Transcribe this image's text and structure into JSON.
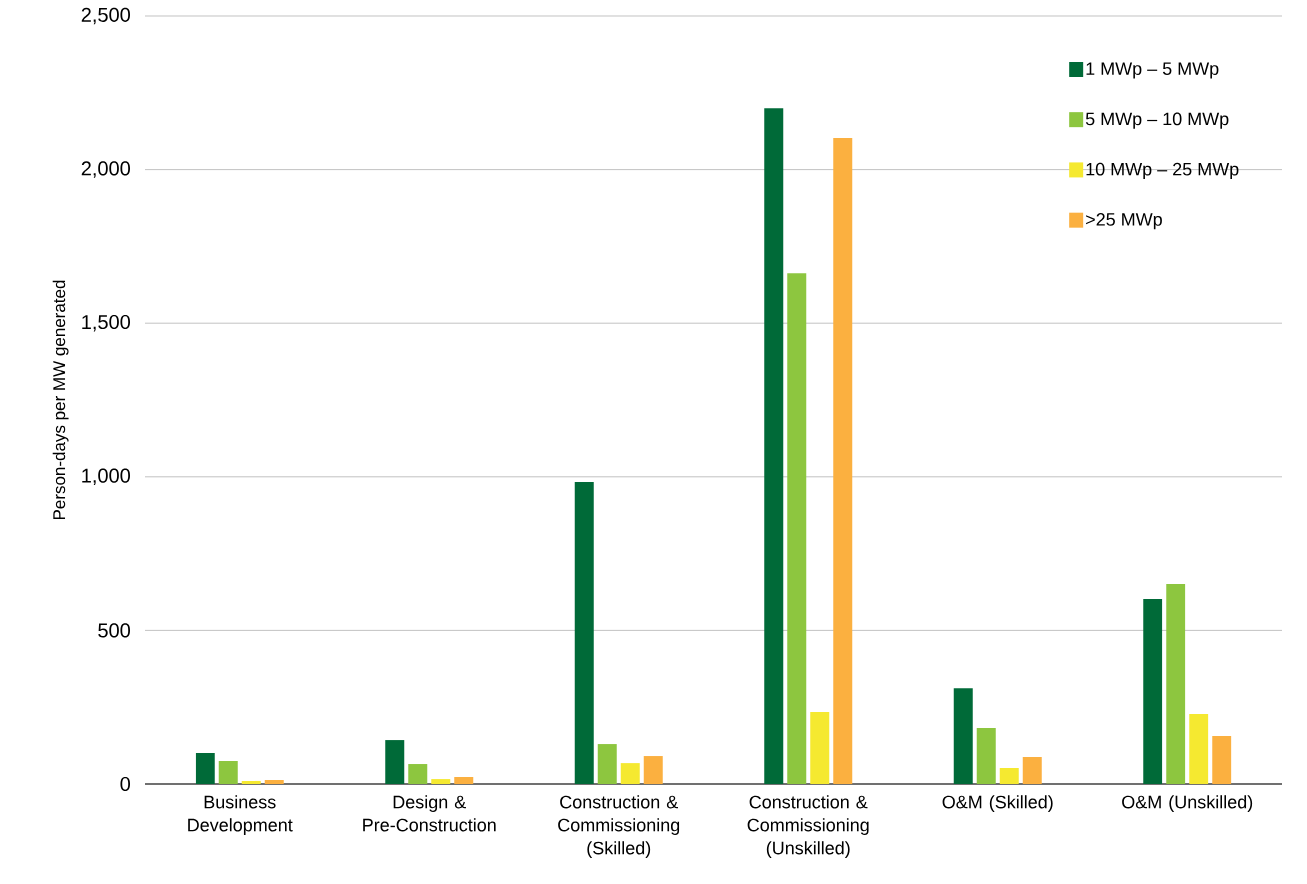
{
  "chart_data": {
    "type": "bar",
    "ylabel": "Person-days per MW generated",
    "categories": [
      "Business Development",
      "Design & Pre-Construction",
      "Construction & Commissioning (Skilled)",
      "Construction & Commissioning (Unskilled)",
      "O&M (Skilled)",
      "O&M (Unskilled)"
    ],
    "series": [
      {
        "name": "1 MWp – 5 MWp",
        "color": "#006a38",
        "values": [
          101,
          143,
          983,
          2200,
          312,
          602
        ]
      },
      {
        "name": "5 MWp – 10 MWp",
        "color": "#8dc63f",
        "values": [
          75,
          65,
          130,
          1663,
          182,
          651
        ]
      },
      {
        "name": "10 MWp – 25 MWp",
        "color": "#f5e930",
        "values": [
          10,
          16,
          68,
          234,
          52,
          228
        ]
      },
      {
        "name": ">25 MWp",
        "color": "#fbb040",
        "values": [
          13,
          23,
          91,
          2103,
          88,
          156
        ]
      }
    ],
    "ylim": [
      0,
      2500
    ],
    "yticks": [
      {
        "value": 0,
        "label": "0"
      },
      {
        "value": 500,
        "label": "500"
      },
      {
        "value": 1000,
        "label": "1,000"
      },
      {
        "value": 1500,
        "label": "1,500"
      },
      {
        "value": 2000,
        "label": "2,000"
      },
      {
        "value": 2500,
        "label": "2,500"
      }
    ],
    "grid": "y",
    "legend": "top right"
  }
}
